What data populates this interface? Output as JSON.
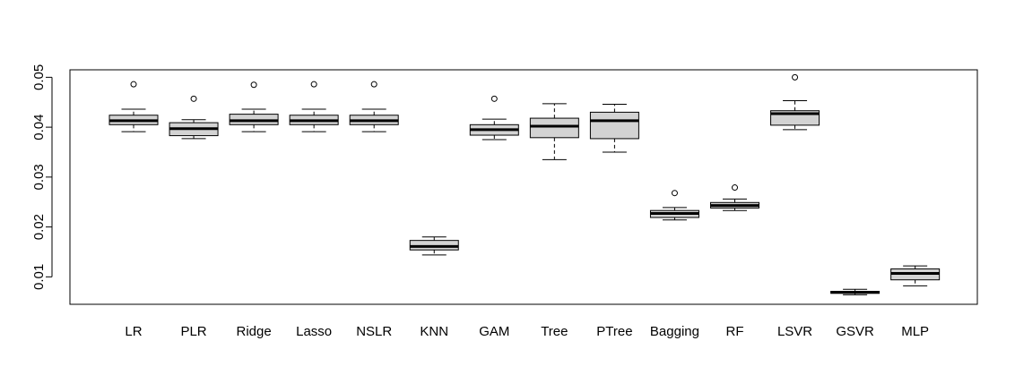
{
  "chart_data": {
    "type": "boxplot",
    "title": "",
    "xlabel": "",
    "ylabel": "",
    "ylim": [
      0.0045,
      0.0515
    ],
    "y_ticks": [
      0.01,
      0.02,
      0.03,
      0.04,
      0.05
    ],
    "y_tick_labels": [
      "0.01",
      "0.02",
      "0.03",
      "0.04",
      "0.05"
    ],
    "grid": false,
    "box_color": "#d3d3d3",
    "categories": [
      "LR",
      "PLR",
      "Ridge",
      "Lasso",
      "NSLR",
      "KNN",
      "GAM",
      "Tree",
      "PTree",
      "Bagging",
      "RF",
      "LSVR",
      "GSVR",
      "MLP"
    ],
    "boxes": [
      {
        "name": "LR",
        "min": 0.0391,
        "q1": 0.0405,
        "median": 0.0413,
        "q3": 0.0424,
        "max": 0.0436,
        "outliers": [
          0.0486
        ]
      },
      {
        "name": "PLR",
        "min": 0.0377,
        "q1": 0.0383,
        "median": 0.0397,
        "q3": 0.0409,
        "max": 0.0415,
        "outliers": [
          0.0457
        ]
      },
      {
        "name": "Ridge",
        "min": 0.0391,
        "q1": 0.0405,
        "median": 0.0413,
        "q3": 0.0426,
        "max": 0.0436,
        "outliers": [
          0.0485
        ]
      },
      {
        "name": "Lasso",
        "min": 0.0391,
        "q1": 0.0405,
        "median": 0.0413,
        "q3": 0.0424,
        "max": 0.0436,
        "outliers": [
          0.0486
        ]
      },
      {
        "name": "NSLR",
        "min": 0.0391,
        "q1": 0.0405,
        "median": 0.0413,
        "q3": 0.0424,
        "max": 0.0436,
        "outliers": [
          0.0486
        ]
      },
      {
        "name": "KNN",
        "min": 0.0144,
        "q1": 0.0154,
        "median": 0.0161,
        "q3": 0.0173,
        "max": 0.018,
        "outliers": []
      },
      {
        "name": "GAM",
        "min": 0.0375,
        "q1": 0.0384,
        "median": 0.0395,
        "q3": 0.0405,
        "max": 0.0416,
        "outliers": [
          0.0457
        ]
      },
      {
        "name": "Tree",
        "min": 0.0335,
        "q1": 0.0379,
        "median": 0.0402,
        "q3": 0.0418,
        "max": 0.0447,
        "outliers": []
      },
      {
        "name": "PTree",
        "min": 0.035,
        "q1": 0.0377,
        "median": 0.0413,
        "q3": 0.043,
        "max": 0.0446,
        "outliers": []
      },
      {
        "name": "Bagging",
        "min": 0.0214,
        "q1": 0.0219,
        "median": 0.0227,
        "q3": 0.0233,
        "max": 0.0239,
        "outliers": [
          0.0268
        ]
      },
      {
        "name": "RF",
        "min": 0.0233,
        "q1": 0.0238,
        "median": 0.0243,
        "q3": 0.0249,
        "max": 0.0256,
        "outliers": [
          0.0279
        ]
      },
      {
        "name": "LSVR",
        "min": 0.0395,
        "q1": 0.0404,
        "median": 0.0427,
        "q3": 0.0433,
        "max": 0.0453,
        "outliers": [
          0.05
        ]
      },
      {
        "name": "GSVR",
        "min": 0.0064,
        "q1": 0.0067,
        "median": 0.0069,
        "q3": 0.0071,
        "max": 0.0075,
        "outliers": []
      },
      {
        "name": "MLP",
        "min": 0.0082,
        "q1": 0.0094,
        "median": 0.0107,
        "q3": 0.0116,
        "max": 0.0122,
        "outliers": []
      }
    ]
  }
}
